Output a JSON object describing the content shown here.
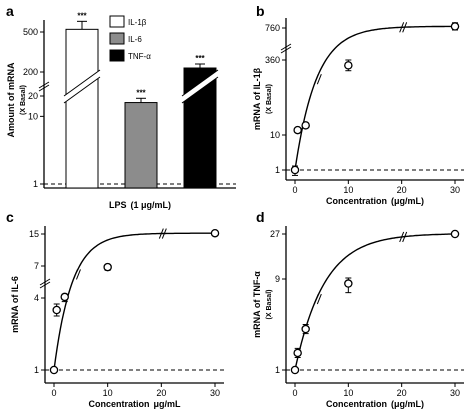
{
  "chart_data": [
    {
      "panel": "a",
      "type": "bar",
      "categories": [
        "IL-1β",
        "IL-6",
        "TNF-α"
      ],
      "values": [
        520,
        16,
        230
      ],
      "errors": [
        60,
        2.5,
        30
      ],
      "significance": [
        "***",
        "***",
        "***"
      ],
      "colors": [
        "#ffffff",
        "#8c8c8c",
        "#000000"
      ],
      "legend": [
        "IL-1β",
        "IL-6",
        "TNF-α"
      ],
      "legend_position": "top-right",
      "xlabel": "LPS",
      "xlabel_unit": "(1 μg/mL)",
      "ylabel": "Amount of mRNA",
      "ylabel_sub": "(X Basal)",
      "yscale": "log with axis breaks",
      "yticks": [
        "1",
        "10",
        "20",
        "200",
        "500"
      ],
      "baseline": 1,
      "baseline_style": "dashed"
    },
    {
      "panel": "b",
      "type": "line",
      "series": [
        {
          "x": [
            0,
            0.5,
            2,
            10,
            30
          ],
          "y": [
            1,
            33,
            55,
            335,
            780
          ],
          "errors": [
            0.3,
            5,
            7,
            25,
            45
          ]
        }
      ],
      "xlabel": "Concentration",
      "xlabel_unit": "(μg/mL)",
      "ylabel": "mRNA of IL-1β",
      "ylabel_sub": "(X Basal)",
      "xlim": [
        0,
        30
      ],
      "xticks": [
        "0",
        "10",
        "20",
        "30"
      ],
      "yticks": [
        "1",
        "10",
        "360",
        "760"
      ],
      "baseline": 1,
      "baseline_style": "dashed"
    },
    {
      "panel": "c",
      "type": "line",
      "series": [
        {
          "x": [
            0,
            0.5,
            2,
            10,
            30
          ],
          "y": [
            1,
            3.5,
            4.1,
            6.9,
            15.2
          ],
          "errors": [
            0.05,
            0.25,
            0.25,
            0.3,
            0.6
          ]
        }
      ],
      "xlabel": "Concentration",
      "xlabel_unit": "μg/mL",
      "ylabel": "mRNA of IL-6",
      "ylabel_sub": "",
      "xlim": [
        0,
        30
      ],
      "xticks": [
        "0",
        "10",
        "20",
        "30"
      ],
      "yticks": [
        "1",
        "4",
        "7",
        "15"
      ],
      "baseline": 1,
      "baseline_style": "dashed"
    },
    {
      "panel": "d",
      "type": "line",
      "series": [
        {
          "x": [
            0,
            0.5,
            2,
            10,
            30
          ],
          "y": [
            1,
            2.5,
            4.6,
            8.6,
            27
          ],
          "errors": [
            0.2,
            0.4,
            0.4,
            0.8,
            1.0
          ]
        }
      ],
      "xlabel": "Concentration",
      "xlabel_unit": "(μg/mL)",
      "ylabel": "mRNA of TNF-α",
      "ylabel_sub": "(X Basal)",
      "xlim": [
        0,
        30
      ],
      "xticks": [
        "0",
        "10",
        "20",
        "30"
      ],
      "yticks": [
        "1",
        "9",
        "27"
      ],
      "baseline": 1,
      "baseline_style": "dashed"
    }
  ]
}
